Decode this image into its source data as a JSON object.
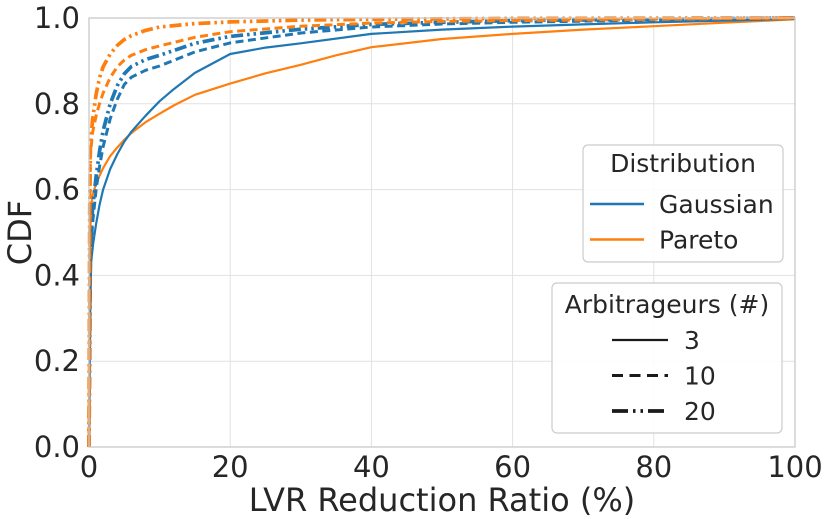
{
  "chart_data": {
    "type": "line",
    "subtype": "cdf",
    "title": "",
    "xlabel": "LVR Reduction Ratio (%)",
    "ylabel": "CDF",
    "xlim": [
      0,
      100
    ],
    "ylim": [
      0.0,
      1.0
    ],
    "grid": true,
    "xticks": {
      "values": [
        0,
        20,
        40,
        60,
        80,
        100
      ],
      "labels": [
        "0",
        "20",
        "40",
        "60",
        "80",
        "100"
      ]
    },
    "yticks": {
      "values": [
        0.0,
        0.2,
        0.4,
        0.6,
        0.8,
        1.0
      ],
      "labels": [
        "0.0",
        "0.2",
        "0.4",
        "0.6",
        "0.8",
        "1.0"
      ]
    },
    "colors": {
      "gaussian": "#1f77b4",
      "pareto": "#ff7f0e",
      "legend_line": "#1a1a1a",
      "grid": "#e1e1e1",
      "spine": "#c9c9c9",
      "text": "#262626",
      "background": "#ffffff"
    },
    "series": [
      {
        "name": "Pareto-3",
        "distribution": "Pareto",
        "arbitrageurs": 3,
        "color": "#ff7f0e",
        "linestyle": "solid",
        "points": [
          [
            0,
            0
          ],
          [
            0.1,
            0.4
          ],
          [
            0.25,
            0.55
          ],
          [
            0.5,
            0.585
          ],
          [
            1,
            0.615
          ],
          [
            2,
            0.65
          ],
          [
            3,
            0.678
          ],
          [
            4,
            0.698
          ],
          [
            5,
            0.716
          ],
          [
            6,
            0.732
          ],
          [
            8,
            0.757
          ],
          [
            10,
            0.777
          ],
          [
            12,
            0.796
          ],
          [
            15,
            0.821
          ],
          [
            20,
            0.847
          ],
          [
            25,
            0.871
          ],
          [
            30,
            0.891
          ],
          [
            35,
            0.913
          ],
          [
            40,
            0.932
          ],
          [
            50,
            0.951
          ],
          [
            60,
            0.963
          ],
          [
            70,
            0.973
          ],
          [
            80,
            0.981
          ],
          [
            90,
            0.989
          ],
          [
            100,
            0.997
          ]
        ]
      },
      {
        "name": "Gaussian-3",
        "distribution": "Gaussian",
        "arbitrageurs": 3,
        "color": "#1f77b4",
        "linestyle": "solid",
        "points": [
          [
            0,
            0
          ],
          [
            0.15,
            0.3
          ],
          [
            0.3,
            0.43
          ],
          [
            0.6,
            0.475
          ],
          [
            1,
            0.52
          ],
          [
            1.5,
            0.565
          ],
          [
            2,
            0.6
          ],
          [
            3,
            0.648
          ],
          [
            4,
            0.682
          ],
          [
            5,
            0.712
          ],
          [
            6,
            0.735
          ],
          [
            8,
            0.772
          ],
          [
            10,
            0.806
          ],
          [
            12,
            0.834
          ],
          [
            15,
            0.872
          ],
          [
            20,
            0.916
          ],
          [
            25,
            0.931
          ],
          [
            30,
            0.941
          ],
          [
            40,
            0.963
          ],
          [
            50,
            0.973
          ],
          [
            60,
            0.98
          ],
          [
            70,
            0.985
          ],
          [
            80,
            0.99
          ],
          [
            90,
            0.994
          ],
          [
            100,
            0.998
          ]
        ]
      },
      {
        "name": "Gaussian-10",
        "distribution": "Gaussian",
        "arbitrageurs": 10,
        "color": "#1f77b4",
        "linestyle": "dashed",
        "points": [
          [
            0,
            0
          ],
          [
            0.2,
            0.42
          ],
          [
            0.5,
            0.52
          ],
          [
            1,
            0.6
          ],
          [
            1.5,
            0.655
          ],
          [
            2,
            0.7
          ],
          [
            3,
            0.765
          ],
          [
            4,
            0.81
          ],
          [
            5,
            0.845
          ],
          [
            6,
            0.862
          ],
          [
            8,
            0.878
          ],
          [
            10,
            0.888
          ],
          [
            15,
            0.921
          ],
          [
            20,
            0.942
          ],
          [
            30,
            0.965
          ],
          [
            40,
            0.979
          ],
          [
            50,
            0.986
          ],
          [
            60,
            0.99
          ],
          [
            80,
            0.995
          ],
          [
            100,
            0.999
          ]
        ]
      },
      {
        "name": "Gaussian-20",
        "distribution": "Gaussian",
        "arbitrageurs": 20,
        "color": "#1f77b4",
        "linestyle": "dashdot",
        "points": [
          [
            0,
            0
          ],
          [
            0.2,
            0.45
          ],
          [
            0.5,
            0.555
          ],
          [
            1,
            0.63
          ],
          [
            1.5,
            0.69
          ],
          [
            2,
            0.737
          ],
          [
            3,
            0.8
          ],
          [
            4,
            0.842
          ],
          [
            5,
            0.87
          ],
          [
            6,
            0.887
          ],
          [
            8,
            0.903
          ],
          [
            10,
            0.913
          ],
          [
            15,
            0.941
          ],
          [
            20,
            0.957
          ],
          [
            30,
            0.974
          ],
          [
            40,
            0.985
          ],
          [
            50,
            0.99
          ],
          [
            60,
            0.994
          ],
          [
            80,
            0.997
          ],
          [
            100,
            1.0
          ]
        ]
      },
      {
        "name": "Pareto-10",
        "distribution": "Pareto",
        "arbitrageurs": 10,
        "color": "#ff7f0e",
        "linestyle": "dashed",
        "points": [
          [
            0,
            0
          ],
          [
            0.1,
            0.5
          ],
          [
            0.2,
            0.68
          ],
          [
            0.5,
            0.732
          ],
          [
            1,
            0.772
          ],
          [
            1.5,
            0.801
          ],
          [
            2,
            0.825
          ],
          [
            3,
            0.861
          ],
          [
            4,
            0.886
          ],
          [
            5,
            0.902
          ],
          [
            6,
            0.913
          ],
          [
            8,
            0.926
          ],
          [
            10,
            0.935
          ],
          [
            15,
            0.955
          ],
          [
            20,
            0.968
          ],
          [
            30,
            0.981
          ],
          [
            40,
            0.988
          ],
          [
            50,
            0.992
          ],
          [
            60,
            0.994
          ],
          [
            80,
            0.997
          ],
          [
            100,
            1.0
          ]
        ]
      },
      {
        "name": "Pareto-20",
        "distribution": "Pareto",
        "arbitrageurs": 20,
        "color": "#ff7f0e",
        "linestyle": "dashdot",
        "points": [
          [
            0,
            0
          ],
          [
            0.1,
            0.55
          ],
          [
            0.2,
            0.7
          ],
          [
            0.5,
            0.762
          ],
          [
            1,
            0.822
          ],
          [
            1.5,
            0.861
          ],
          [
            2,
            0.886
          ],
          [
            3,
            0.916
          ],
          [
            4,
            0.936
          ],
          [
            5,
            0.95
          ],
          [
            6,
            0.959
          ],
          [
            8,
            0.971
          ],
          [
            10,
            0.979
          ],
          [
            15,
            0.987
          ],
          [
            20,
            0.991
          ],
          [
            30,
            0.995
          ],
          [
            40,
            0.997
          ],
          [
            60,
            0.999
          ],
          [
            100,
            1.0
          ]
        ]
      }
    ],
    "legends": [
      {
        "title": "Distribution",
        "entries": [
          {
            "label": "Gaussian",
            "color": "#1f77b4",
            "linestyle": "solid"
          },
          {
            "label": "Pareto",
            "color": "#ff7f0e",
            "linestyle": "solid"
          }
        ],
        "position": "center right"
      },
      {
        "title": "Arbitrageurs (#)",
        "entries": [
          {
            "label": "3",
            "color": "#1a1a1a",
            "linestyle": "solid"
          },
          {
            "label": "10",
            "color": "#1a1a1a",
            "linestyle": "dashed"
          },
          {
            "label": "20",
            "color": "#1a1a1a",
            "linestyle": "dashdot"
          }
        ],
        "position": "lower right"
      }
    ]
  }
}
